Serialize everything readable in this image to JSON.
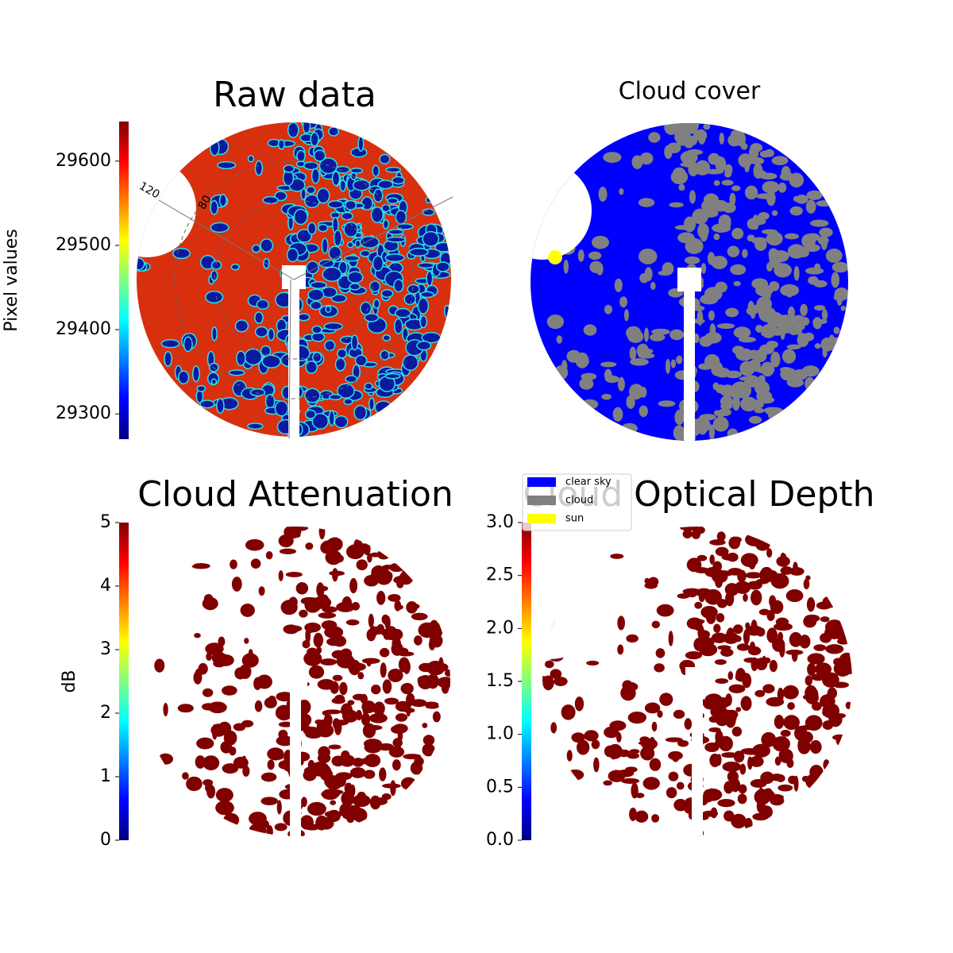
{
  "chart_data": [
    {
      "type": "image",
      "title": "Raw data",
      "colorbar_label": "Pixel values",
      "ylim": [
        29270,
        29647
      ],
      "yticks": [
        29300,
        29400,
        29500,
        29600
      ],
      "annotations": [
        "120",
        "80"
      ]
    },
    {
      "type": "classification",
      "title": "Cloud cover",
      "series": [
        {
          "name": "clear sky",
          "color": "#0000ff"
        },
        {
          "name": "cloud",
          "color": "#808080"
        },
        {
          "name": "sun",
          "color": "#ffff00"
        }
      ]
    },
    {
      "type": "image",
      "title": "Cloud Attenuation",
      "colorbar_label": "dB",
      "color": "#800000",
      "ylim": [
        0,
        5
      ],
      "yticks": [
        0,
        1,
        2,
        3,
        4,
        5
      ]
    },
    {
      "type": "image",
      "title": "Cloud Optical Depth",
      "color": "#800000",
      "ylim": [
        0,
        3
      ],
      "yticks": [
        {
          "value": 0,
          "label": "0.0"
        },
        {
          "value": 0.5,
          "label": "0.5"
        },
        {
          "value": 1,
          "label": "1.0"
        },
        {
          "value": 1.5,
          "label": "1.5"
        },
        {
          "value": 2,
          "label": "2.0"
        },
        {
          "value": 2.5,
          "label": "2.5"
        },
        {
          "value": 3,
          "label": "3.0"
        }
      ]
    }
  ]
}
